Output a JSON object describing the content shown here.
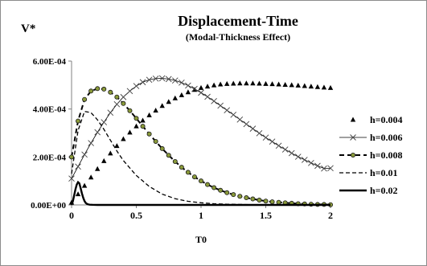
{
  "chart_data": {
    "type": "line",
    "title": "Displacement-Time",
    "subtitle": "(Modal-Thickness Effect)",
    "xlabel": "T0",
    "ylabel": "V*",
    "xlim": [
      0,
      2
    ],
    "ylim": [
      0,
      0.0006
    ],
    "x_ticks": [
      0,
      0.5,
      1,
      1.5,
      2
    ],
    "x_tick_labels": [
      "0",
      "0.5",
      "1",
      "1.5",
      "2"
    ],
    "y_ticks": [
      0,
      0.0002,
      0.0004,
      0.0006
    ],
    "y_tick_labels": [
      "0.00E+00",
      "2.00E-04",
      "4.00E-04",
      "6.00E-04"
    ],
    "grid": false,
    "legend_position": "right",
    "series": [
      {
        "name": "h=0.004",
        "marker": "triangle",
        "line": "none",
        "x": [
          0,
          0.05,
          0.1,
          0.15,
          0.2,
          0.25,
          0.3,
          0.35,
          0.4,
          0.45,
          0.5,
          0.55,
          0.6,
          0.65,
          0.7,
          0.75,
          0.8,
          0.85,
          0.9,
          0.95,
          1.0,
          1.05,
          1.1,
          1.15,
          1.2,
          1.25,
          1.3,
          1.35,
          1.4,
          1.45,
          1.5,
          1.55,
          1.6,
          1.65,
          1.7,
          1.75,
          1.8,
          1.85,
          1.9,
          1.95,
          2.0
        ],
        "y": [
          1e-05,
          4.5e-05,
          8e-05,
          0.000115,
          0.00015,
          0.000183,
          0.000215,
          0.000246,
          0.000275,
          0.000302,
          0.000328,
          0.000352,
          0.000374,
          0.000394,
          0.000413,
          0.00043,
          0.000445,
          0.000458,
          0.00047,
          0.00048,
          0.000488,
          0.000494,
          0.000499,
          0.000503,
          0.000505,
          0.000506,
          0.000507,
          0.000507,
          0.000507,
          0.000506,
          0.000505,
          0.000504,
          0.000503,
          0.000501,
          0.0005,
          0.000498,
          0.000496,
          0.000494,
          0.000492,
          0.00049,
          0.000488
        ]
      },
      {
        "name": "h=0.006",
        "marker": "x",
        "line": "solid",
        "x": [
          0,
          0.05,
          0.1,
          0.15,
          0.2,
          0.25,
          0.3,
          0.35,
          0.4,
          0.45,
          0.5,
          0.55,
          0.6,
          0.65,
          0.7,
          0.75,
          0.8,
          0.85,
          0.9,
          0.95,
          1.0,
          1.05,
          1.1,
          1.15,
          1.2,
          1.25,
          1.3,
          1.35,
          1.4,
          1.45,
          1.5,
          1.55,
          1.6,
          1.65,
          1.7,
          1.75,
          1.8,
          1.85,
          1.9,
          1.95,
          2.0
        ],
        "y": [
          0.00011,
          0.00016,
          0.00021,
          0.000258,
          0.000303,
          0.000345,
          0.000385,
          0.00042,
          0.00045,
          0.000475,
          0.000496,
          0.000512,
          0.000522,
          0.000527,
          0.000528,
          0.000525,
          0.000519,
          0.00051,
          0.000498,
          0.000484,
          0.000468,
          0.000451,
          0.000433,
          0.000414,
          0.000395,
          0.000376,
          0.000356,
          0.000337,
          0.000318,
          0.000299,
          0.000281,
          0.000264,
          0.000247,
          0.000231,
          0.000216,
          0.000201,
          0.000188,
          0.000175,
          0.000163,
          0.000152,
          0.000153
        ]
      },
      {
        "name": "h=0.008",
        "marker": "dot",
        "line": "dashed-thick",
        "x": [
          0,
          0.05,
          0.1,
          0.15,
          0.2,
          0.25,
          0.3,
          0.35,
          0.4,
          0.45,
          0.5,
          0.55,
          0.6,
          0.65,
          0.7,
          0.75,
          0.8,
          0.85,
          0.9,
          0.95,
          1.0,
          1.05,
          1.1,
          1.15,
          1.2,
          1.25,
          1.3,
          1.35,
          1.4,
          1.45,
          1.5,
          1.55,
          1.6,
          1.65,
          1.7,
          1.75,
          1.8,
          1.85,
          1.9,
          1.95,
          2.0
        ],
        "y": [
          0.0002,
          0.00035,
          0.00044,
          0.000475,
          0.000485,
          0.000483,
          0.00047,
          0.00045,
          0.000423,
          0.000393,
          0.000361,
          0.000328,
          0.000296,
          0.000265,
          0.000235,
          0.000207,
          0.000181,
          0.000157,
          0.000136,
          0.000117,
          0.0001,
          8.5e-05,
          7.2e-05,
          6.1e-05,
          5.1e-05,
          4.3e-05,
          3.6e-05,
          3e-05,
          2.5e-05,
          2e-05,
          1.6e-05,
          1.3e-05,
          1.1e-05,
          9e-06,
          7e-06,
          5e-06,
          4e-06,
          3e-06,
          2e-06,
          2e-06,
          1e-06
        ]
      },
      {
        "name": "h=0.01",
        "marker": "none",
        "line": "dashed",
        "x": [
          0,
          0.05,
          0.1,
          0.15,
          0.2,
          0.25,
          0.3,
          0.35,
          0.4,
          0.5,
          0.6,
          0.7,
          0.8,
          0.9,
          1.0,
          1.1,
          1.2,
          1.4,
          1.6,
          1.8,
          2.0
        ],
        "y": [
          0.00013,
          0.00031,
          0.00039,
          0.000385,
          0.000355,
          0.000315,
          0.00027,
          0.000225,
          0.000185,
          0.000123,
          7.7e-05,
          4.5e-05,
          2.6e-05,
          1.5e-05,
          9e-06,
          5e-06,
          3e-06,
          1e-06,
          5e-07,
          2e-07,
          1e-07
        ]
      },
      {
        "name": "h=0.02",
        "marker": "none",
        "line": "solid-thick",
        "x": [
          0,
          0.01,
          0.02,
          0.03,
          0.04,
          0.05,
          0.06,
          0.07,
          0.08,
          0.09,
          0.1,
          0.11,
          0.12,
          0.13,
          0.14,
          0.16,
          0.2,
          0.3,
          0.5,
          1.0,
          1.5,
          2.0
        ],
        "y": [
          0.0,
          1.5e-05,
          4e-05,
          6.5e-05,
          8.5e-05,
          9.5e-05,
          9e-05,
          7e-05,
          4.8e-05,
          3e-05,
          1.6e-05,
          8e-06,
          4e-06,
          2e-06,
          1e-06,
          5e-07,
          0.0,
          0.0,
          0.0,
          0.0,
          0.0,
          0.0
        ]
      }
    ]
  }
}
